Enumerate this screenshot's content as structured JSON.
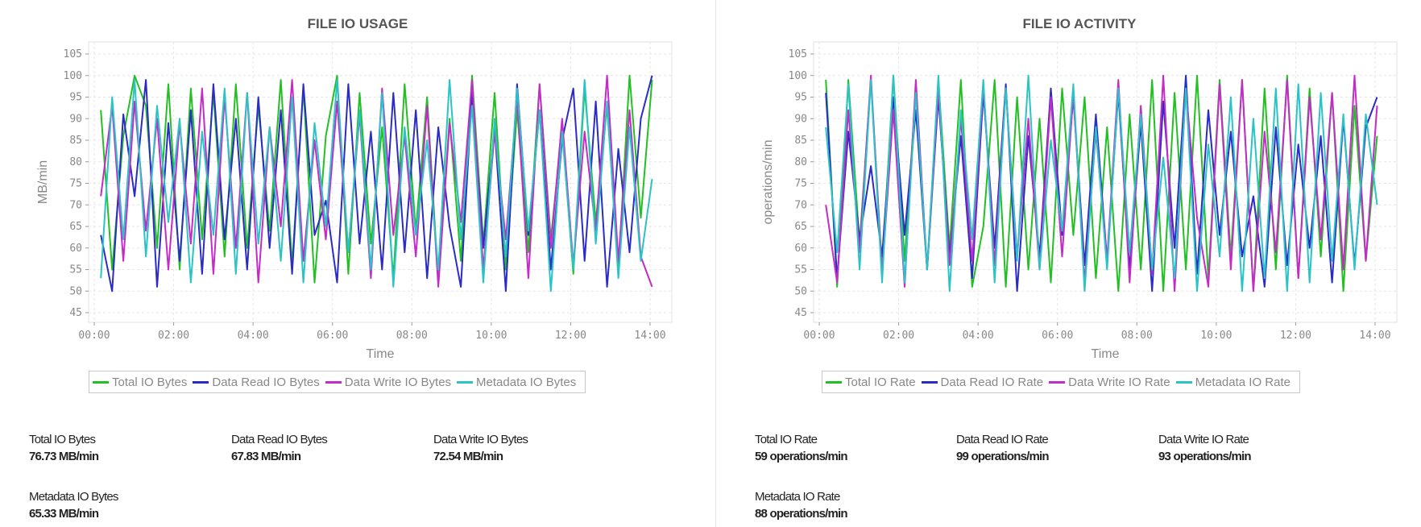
{
  "colors": {
    "total": "#22c022",
    "read": "#2b2bc6",
    "write": "#c42bc8",
    "meta": "#2bc3c6"
  },
  "chart_data": [
    {
      "type": "line",
      "title": "FILE IO USAGE",
      "xlabel": "Time",
      "ylabel": "MB/min",
      "ylim": [
        43,
        107
      ],
      "yticks": [
        "45",
        "50",
        "55",
        "60",
        "65",
        "70",
        "75",
        "80",
        "85",
        "90",
        "95",
        "100",
        "105"
      ],
      "xticks": [
        "00:00",
        "02:00",
        "04:00",
        "06:00",
        "08:00",
        "10:00",
        "12:00",
        "14:00"
      ],
      "grid": true,
      "legend_placement": "bottom",
      "x": [
        "00:10",
        "00:27",
        "00:44",
        "01:01",
        "01:18",
        "01:35",
        "01:52",
        "02:09",
        "02:26",
        "02:43",
        "03:00",
        "03:17",
        "03:34",
        "03:51",
        "04:08",
        "04:25",
        "04:42",
        "04:59",
        "05:16",
        "05:33",
        "05:50",
        "06:07",
        "06:24",
        "06:41",
        "06:58",
        "07:15",
        "07:32",
        "07:49",
        "08:06",
        "08:23",
        "08:40",
        "08:57",
        "09:14",
        "09:31",
        "09:48",
        "10:05",
        "10:22",
        "10:39",
        "10:56",
        "11:13",
        "11:30",
        "11:47",
        "12:04",
        "12:21",
        "12:38",
        "12:55",
        "13:12",
        "13:29",
        "13:46",
        "14:03"
      ],
      "series": [
        {
          "name": "Total IO Bytes",
          "color_key": "total",
          "values": [
            92,
            55,
            86,
            100,
            93,
            60,
            98,
            55,
            97,
            62,
            96,
            58,
            98,
            60,
            93,
            64,
            99,
            56,
            97,
            52,
            86,
            100,
            54,
            96,
            61,
            88,
            53,
            98,
            64,
            95,
            52,
            90,
            57,
            100,
            61,
            96,
            55,
            92,
            59,
            98,
            62,
            88,
            54,
            97,
            66,
            93,
            55,
            100,
            67,
            99
          ]
        },
        {
          "name": "Data Read IO Bytes",
          "color_key": "read",
          "values": [
            63,
            50,
            91,
            72,
            99,
            51,
            89,
            57,
            92,
            54,
            98,
            62,
            90,
            55,
            95,
            60,
            92,
            54,
            98,
            63,
            71,
            52,
            98,
            61,
            87,
            55,
            96,
            59,
            92,
            53,
            88,
            65,
            51,
            96,
            60,
            88,
            50,
            98,
            63,
            92,
            55,
            85,
            97,
            57,
            94,
            51,
            83,
            59,
            90,
            100
          ]
        },
        {
          "name": "Data Write IO Bytes",
          "color_key": "write",
          "values": [
            72,
            93,
            57,
            94,
            64,
            90,
            55,
            89,
            61,
            97,
            54,
            95,
            60,
            96,
            52,
            88,
            65,
            99,
            57,
            85,
            62,
            94,
            59,
            91,
            53,
            97,
            63,
            86,
            58,
            93,
            51,
            89,
            66,
            99,
            55,
            87,
            62,
            95,
            53,
            98,
            60,
            90,
            56,
            87,
            64,
            100,
            57,
            92,
            58,
            51
          ]
        },
        {
          "name": "Metadata IO Bytes",
          "color_key": "meta",
          "values": [
            53,
            95,
            62,
            99,
            58,
            93,
            66,
            90,
            52,
            87,
            63,
            97,
            54,
            96,
            61,
            88,
            57,
            95,
            52,
            89,
            65,
            99,
            59,
            92,
            55,
            96,
            51,
            88,
            63,
            85,
            55,
            99,
            62,
            93,
            52,
            90,
            58,
            97,
            64,
            92,
            50,
            87,
            55,
            99,
            61,
            94,
            53,
            88,
            57,
            76
          ]
        }
      ]
    },
    {
      "type": "line",
      "title": "FILE IO ACTIVITY",
      "xlabel": "Time",
      "ylabel": "operations/min",
      "ylim": [
        43,
        107
      ],
      "yticks": [
        "45",
        "50",
        "55",
        "60",
        "65",
        "70",
        "75",
        "80",
        "85",
        "90",
        "95",
        "100",
        "105"
      ],
      "xticks": [
        "00:00",
        "02:00",
        "04:00",
        "06:00",
        "08:00",
        "10:00",
        "12:00",
        "14:00"
      ],
      "grid": true,
      "legend_placement": "bottom",
      "x": [
        "00:10",
        "00:27",
        "00:44",
        "01:01",
        "01:18",
        "01:35",
        "01:52",
        "02:09",
        "02:26",
        "02:43",
        "03:00",
        "03:17",
        "03:34",
        "03:51",
        "04:08",
        "04:25",
        "04:42",
        "04:59",
        "05:16",
        "05:33",
        "05:50",
        "06:07",
        "06:24",
        "06:41",
        "06:58",
        "07:15",
        "07:32",
        "07:49",
        "08:06",
        "08:23",
        "08:40",
        "08:57",
        "09:14",
        "09:31",
        "09:48",
        "10:05",
        "10:22",
        "10:39",
        "10:56",
        "11:13",
        "11:30",
        "11:47",
        "12:04",
        "12:21",
        "12:38",
        "12:55",
        "13:12",
        "13:29",
        "13:46",
        "14:03"
      ],
      "series": [
        {
          "name": "Total IO Rate",
          "color_key": "total",
          "values": [
            99,
            51,
            99,
            61,
            99,
            55,
            100,
            57,
            97,
            55,
            99,
            60,
            99,
            51,
            65,
            99,
            51,
            95,
            55,
            90,
            52,
            97,
            63,
            95,
            53,
            88,
            50,
            91,
            55,
            99,
            50,
            96,
            55,
            100,
            53,
            99,
            58,
            99,
            50,
            97,
            55,
            100,
            53,
            97,
            58,
            96,
            50,
            93,
            57,
            86
          ]
        },
        {
          "name": "Data Read IO Rate",
          "color_key": "read",
          "values": [
            96,
            53,
            87,
            62,
            79,
            58,
            95,
            63,
            92,
            55,
            95,
            58,
            86,
            53,
            96,
            60,
            98,
            50,
            86,
            58,
            97,
            63,
            95,
            56,
            91,
            57,
            96,
            55,
            89,
            50,
            94,
            60,
            100,
            54,
            92,
            63,
            87,
            58,
            72,
            51,
            88,
            56,
            84,
            60,
            86,
            52,
            90,
            56,
            88,
            95
          ]
        },
        {
          "name": "Data Write IO Rate",
          "color_key": "write",
          "values": [
            70,
            52,
            92,
            59,
            100,
            54,
            92,
            51,
            99,
            55,
            97,
            56,
            90,
            57,
            98,
            56,
            97,
            58,
            90,
            55,
            95,
            58,
            96,
            52,
            87,
            57,
            99,
            52,
            93,
            54,
            100,
            50,
            97,
            67,
            51,
            98,
            55,
            99,
            50,
            87,
            59,
            99,
            53,
            95,
            62,
            96,
            55,
            100,
            57,
            93
          ]
        },
        {
          "name": "Metadata IO Rate",
          "color_key": "meta",
          "values": [
            88,
            59,
            98,
            55,
            99,
            52,
            100,
            52,
            96,
            55,
            100,
            50,
            92,
            62,
            99,
            52,
            97,
            57,
            100,
            55,
            85,
            64,
            98,
            50,
            88,
            55,
            97,
            59,
            91,
            55,
            81,
            53,
            97,
            50,
            84,
            58,
            95,
            50,
            90,
            53,
            97,
            50,
            98,
            52,
            96,
            57,
            91,
            55,
            91,
            70
          ]
        }
      ]
    }
  ],
  "stats": {
    "left": [
      {
        "label": "Total IO Bytes",
        "value": "76.73 MB/min"
      },
      {
        "label": "Data Read IO Bytes",
        "value": "67.83 MB/min"
      },
      {
        "label": "Data Write IO Bytes",
        "value": "72.54 MB/min"
      },
      {
        "label": "Metadata IO Bytes",
        "value": "65.33 MB/min"
      }
    ],
    "right": [
      {
        "label": "Total IO Rate",
        "value": "59 operations/min"
      },
      {
        "label": "Data Read IO Rate",
        "value": "99 operations/min"
      },
      {
        "label": "Data Write IO Rate",
        "value": "93 operations/min"
      },
      {
        "label": "Metadata IO Rate",
        "value": "88 operations/min"
      }
    ]
  }
}
